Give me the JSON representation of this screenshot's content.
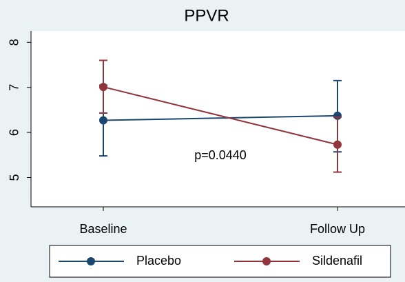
{
  "chart_data": {
    "type": "line",
    "title": "PPVR",
    "categories": [
      "Baseline",
      "Follow Up"
    ],
    "series": [
      {
        "name": "Placebo",
        "color": "#1a476f",
        "values": [
          6.27,
          6.37
        ],
        "lower": [
          5.48,
          5.57
        ],
        "upper": [
          7.05,
          7.15
        ]
      },
      {
        "name": "Sildenafil",
        "color": "#90353b",
        "values": [
          7.01,
          5.73
        ],
        "lower": [
          6.43,
          5.12
        ],
        "upper": [
          7.6,
          6.34
        ]
      }
    ],
    "ylim": [
      4.35,
      8.25
    ],
    "yticks": [
      5,
      6,
      7,
      8
    ],
    "annotation": "p=0.0440"
  }
}
